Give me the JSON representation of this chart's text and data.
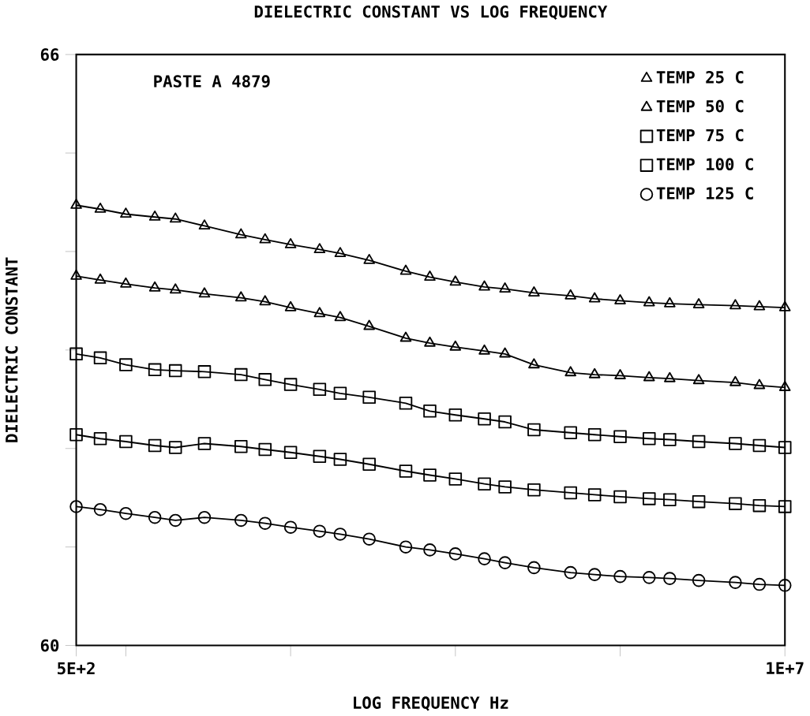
{
  "chart_data": {
    "type": "line",
    "title": "DIELECTRIC CONSTANT VS LOG FREQUENCY",
    "xlabel": "LOG FREQUENCY Hz",
    "ylabel": "DIELECTRIC CONSTANT",
    "annotations": [
      "PASTE A 4879"
    ],
    "log": "x",
    "legend": "top right",
    "line_style": "solid",
    "grid": false,
    "xlim": [
      500,
      10000000
    ],
    "ylim": [
      60,
      66
    ],
    "xticks": [
      {
        "value": 500,
        "label": "5E+2"
      },
      {
        "value": 1000,
        "label": null
      },
      {
        "value": 10000,
        "label": null
      },
      {
        "value": 100000,
        "label": null
      },
      {
        "value": 1000000,
        "label": null
      },
      {
        "value": 10000000,
        "label": "1E+7"
      }
    ],
    "yticks": [
      60,
      {
        "value": 61,
        "label": null
      },
      {
        "value": 62,
        "label": null
      },
      {
        "value": 63,
        "label": null
      },
      {
        "value": 64,
        "label": null
      },
      {
        "value": 65,
        "label": null
      },
      66
    ],
    "x": [
      500,
      700,
      1000,
      1500,
      2000,
      3000,
      5000,
      7000,
      10000,
      15000,
      20000,
      30000,
      50000,
      70000,
      100000,
      150000,
      200000,
      300000,
      500000,
      700000,
      1000000,
      1500000,
      2000000,
      3000000,
      5000000,
      7000000,
      10000000
    ],
    "series": [
      {
        "name": "TEMP 25 C",
        "color": "#000000",
        "marker": "triangle",
        "values": [
          64.47,
          64.43,
          64.38,
          64.35,
          64.33,
          64.26,
          64.17,
          64.12,
          64.07,
          64.02,
          63.98,
          63.91,
          63.8,
          63.74,
          63.69,
          63.64,
          63.62,
          63.58,
          63.55,
          63.52,
          63.5,
          63.48,
          63.47,
          63.46,
          63.45,
          63.44,
          63.43
        ]
      },
      {
        "name": "TEMP 50 C",
        "color": "#000000",
        "marker": "triangle",
        "values": [
          63.75,
          63.71,
          63.67,
          63.63,
          63.61,
          63.57,
          63.53,
          63.49,
          63.43,
          63.37,
          63.33,
          63.24,
          63.12,
          63.07,
          63.03,
          62.99,
          62.96,
          62.85,
          62.77,
          62.75,
          62.74,
          62.72,
          62.71,
          62.69,
          62.67,
          62.64,
          62.62
        ]
      },
      {
        "name": "TEMP 75 C",
        "color": "#000000",
        "marker": "square",
        "values": [
          62.96,
          62.92,
          62.85,
          62.8,
          62.79,
          62.78,
          62.75,
          62.7,
          62.65,
          62.6,
          62.56,
          62.52,
          62.46,
          62.38,
          62.34,
          62.3,
          62.27,
          62.19,
          62.16,
          62.14,
          62.12,
          62.1,
          62.09,
          62.07,
          62.05,
          62.03,
          62.01
        ]
      },
      {
        "name": "TEMP 100 C",
        "color": "#000000",
        "marker": "square",
        "values": [
          62.14,
          62.1,
          62.07,
          62.03,
          62.01,
          62.05,
          62.02,
          61.99,
          61.96,
          61.92,
          61.89,
          61.84,
          61.77,
          61.73,
          61.69,
          61.64,
          61.61,
          61.58,
          61.55,
          61.53,
          61.51,
          61.49,
          61.48,
          61.46,
          61.44,
          61.42,
          61.41
        ]
      },
      {
        "name": "TEMP 125 C",
        "color": "#000000",
        "marker": "circle",
        "values": [
          61.41,
          61.38,
          61.34,
          61.3,
          61.27,
          61.3,
          61.27,
          61.24,
          61.2,
          61.16,
          61.13,
          61.08,
          61.0,
          60.97,
          60.93,
          60.88,
          60.84,
          60.79,
          60.74,
          60.72,
          60.7,
          60.69,
          60.68,
          60.66,
          60.64,
          60.62,
          60.61
        ]
      }
    ]
  }
}
